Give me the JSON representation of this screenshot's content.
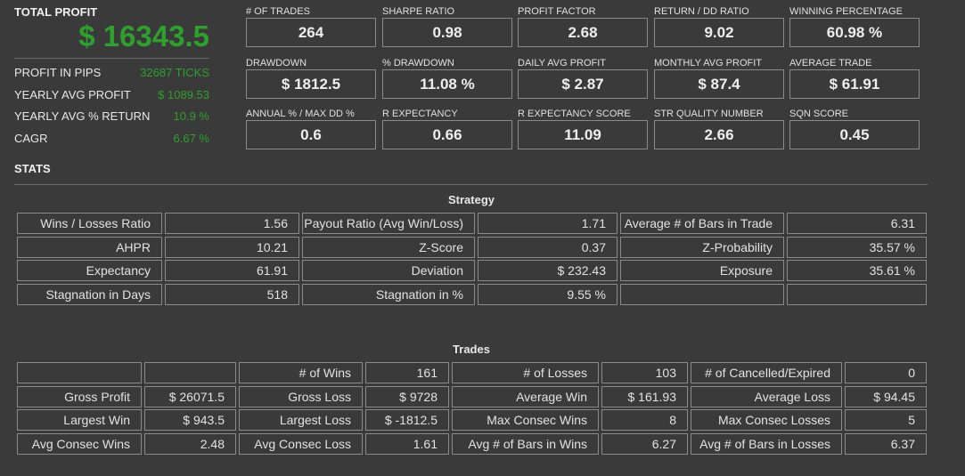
{
  "summary": {
    "title": "TOTAL PROFIT",
    "total": "$ 16343.5",
    "rows": [
      {
        "label": "PROFIT IN PIPS",
        "value": "32687 TICKS"
      },
      {
        "label": "YEARLY AVG PROFIT",
        "value": "$ 1089.53"
      },
      {
        "label": "YEARLY AVG % RETURN",
        "value": "10.9 %"
      },
      {
        "label": "CAGR",
        "value": "6.67 %"
      }
    ]
  },
  "metrics": [
    {
      "label": "# OF TRADES",
      "value": "264"
    },
    {
      "label": "SHARPE RATIO",
      "value": "0.98"
    },
    {
      "label": "PROFIT FACTOR",
      "value": "2.68"
    },
    {
      "label": "RETURN / DD RATIO",
      "value": "9.02"
    },
    {
      "label": "WINNING PERCENTAGE",
      "value": "60.98 %"
    },
    {
      "label": "DRAWDOWN",
      "value": "$ 1812.5"
    },
    {
      "label": "% DRAWDOWN",
      "value": "11.08 %"
    },
    {
      "label": "DAILY AVG PROFIT",
      "value": "$ 2.87"
    },
    {
      "label": "MONTHLY AVG PROFIT",
      "value": "$ 87.4"
    },
    {
      "label": "AVERAGE TRADE",
      "value": "$ 61.91"
    },
    {
      "label": "ANNUAL % / MAX DD %",
      "value": "0.6"
    },
    {
      "label": "R EXPECTANCY",
      "value": "0.66"
    },
    {
      "label": "R EXPECTANCY SCORE",
      "value": "11.09"
    },
    {
      "label": "STR QUALITY NUMBER",
      "value": "2.66"
    },
    {
      "label": "SQN SCORE",
      "value": "0.45"
    }
  ],
  "stats_heading": "STATS",
  "strategy": {
    "title": "Strategy",
    "rows": [
      [
        "Wins / Losses Ratio",
        "1.56",
        "Payout Ratio (Avg Win/Loss)",
        "1.71",
        "Average # of Bars in Trade",
        "6.31"
      ],
      [
        "AHPR",
        "10.21",
        "Z-Score",
        "0.37",
        "Z-Probability",
        "35.57 %"
      ],
      [
        "Expectancy",
        "61.91",
        "Deviation",
        "$ 232.43",
        "Exposure",
        "35.61 %"
      ],
      [
        "Stagnation in Days",
        "518",
        "Stagnation in %",
        "9.55 %",
        null,
        null
      ]
    ]
  },
  "trades": {
    "title": "Trades",
    "rows": [
      [
        null,
        null,
        "# of Wins",
        "161",
        "# of Losses",
        "103",
        "# of Cancelled/Expired",
        "0"
      ],
      [
        "Gross Profit",
        "$ 26071.5",
        "Gross Loss",
        "$ 9728",
        "Average Win",
        "$ 161.93",
        "Average Loss",
        "$ 94.45"
      ],
      [
        "Largest Win",
        "$ 943.5",
        "Largest Loss",
        "$ -1812.5",
        "Max Consec Wins",
        "8",
        "Max Consec Losses",
        "5"
      ],
      [
        "Avg Consec Wins",
        "2.48",
        "Avg Consec Loss",
        "1.61",
        "Avg # of Bars in Wins",
        "6.27",
        "Avg # of Bars in Losses",
        "6.37"
      ]
    ]
  }
}
